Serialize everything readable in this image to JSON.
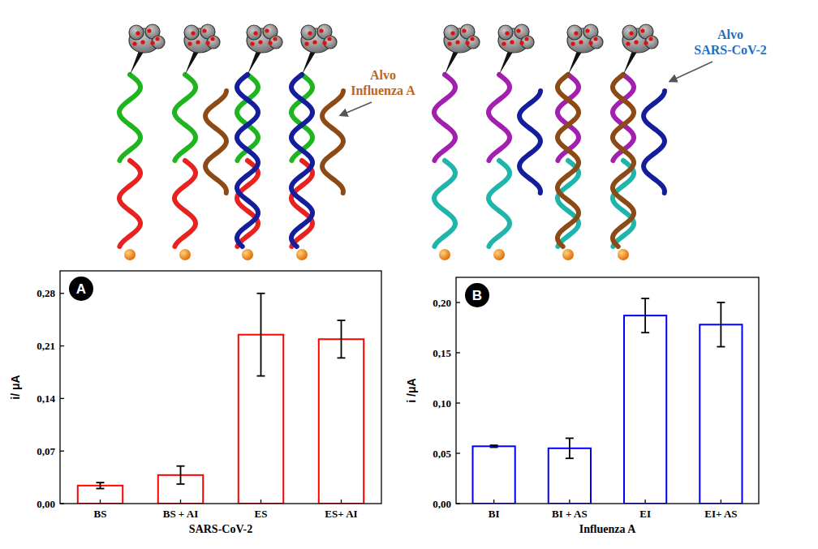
{
  "chart_data": [
    {
      "type": "bar",
      "panel_label": "A",
      "x_label": "SARS-CoV-2",
      "y_label": "i/ μA",
      "categories": [
        "BS",
        "BS + AI",
        "ES",
        "ES+ AI"
      ],
      "values": [
        0.024,
        0.038,
        0.225,
        0.219
      ],
      "errors": [
        0.004,
        0.012,
        0.055,
        0.025
      ],
      "color": "#ff0000",
      "ylim": [
        0,
        0.31
      ],
      "yticks": [
        {
          "value": 0,
          "label": "0,00"
        },
        {
          "value": 0.07,
          "label": "0,07"
        },
        {
          "value": 0.14,
          "label": "0,14"
        },
        {
          "value": 0.21,
          "label": "0,21"
        },
        {
          "value": 0.28,
          "label": "0,28"
        }
      ],
      "grid": false
    },
    {
      "type": "bar",
      "panel_label": "B",
      "x_label": "Influenza A",
      "y_label": "i /μA",
      "categories": [
        "BI",
        "BI + AS",
        "EI",
        "EI+ AS"
      ],
      "values": [
        0.057,
        0.055,
        0.187,
        0.178
      ],
      "errors": [
        0.001,
        0.01,
        0.017,
        0.022
      ],
      "color": "#0000ff",
      "ylim": [
        0,
        0.225
      ],
      "yticks": [
        {
          "value": 0,
          "label": "0,00"
        },
        {
          "value": 0.05,
          "label": "0,05"
        },
        {
          "value": 0.1,
          "label": "0,10"
        },
        {
          "value": 0.15,
          "label": "0,15"
        },
        {
          "value": 0.2,
          "label": "0,20"
        }
      ],
      "grid": false
    }
  ],
  "diagram": {
    "annotations": [
      "Alvo Influenza A",
      "Alvo SARS-CoV-2"
    ]
  }
}
